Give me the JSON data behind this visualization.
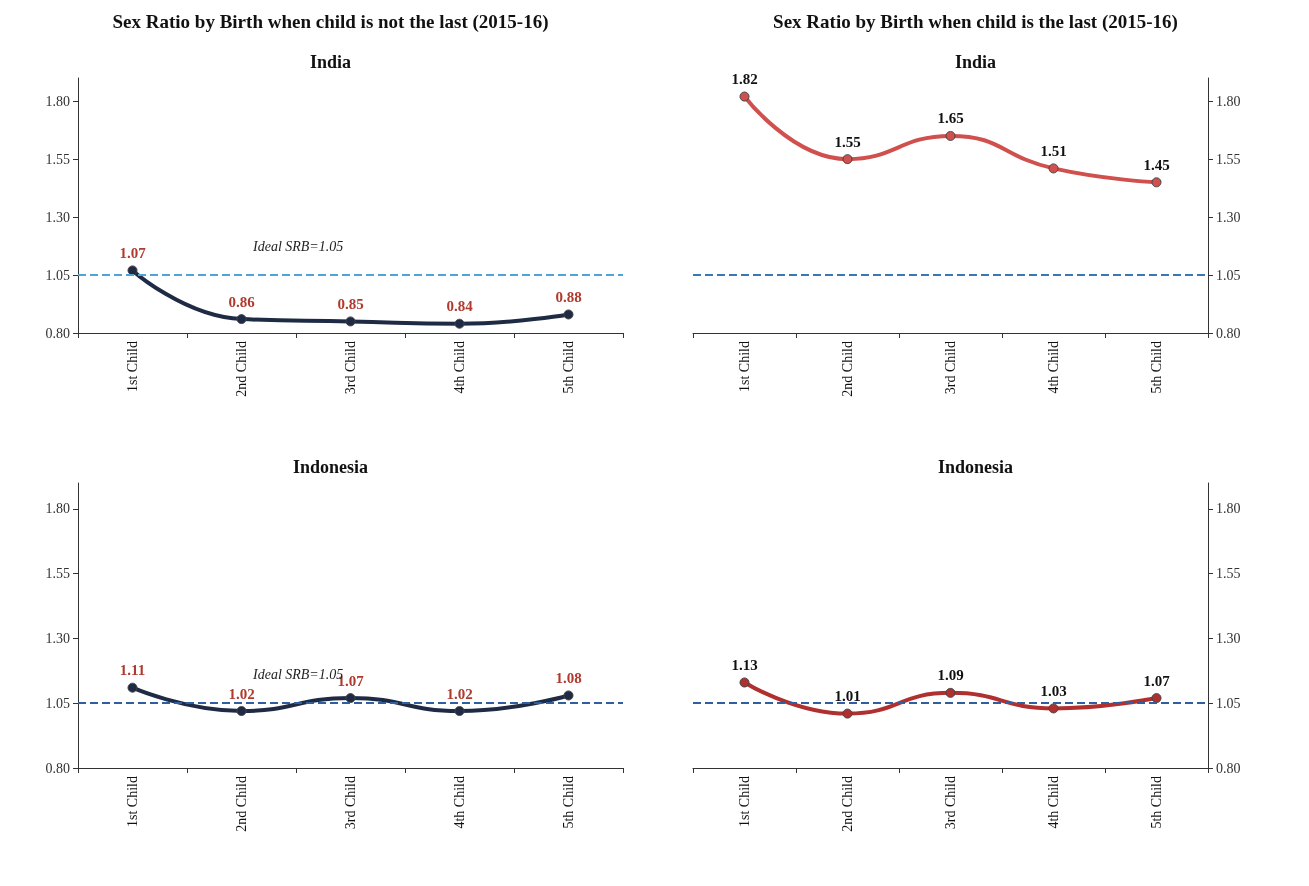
{
  "chart_data": [
    {
      "type": "line",
      "title": "India",
      "annotations": [
        "Sex Ratio by Birth when child is not the last (2015-16)"
      ],
      "categories": [
        "1st Child",
        "2nd Child",
        "3rd Child",
        "4th Child",
        "5th Child"
      ],
      "series": [
        {
          "color": "#1f2a44",
          "values": [
            1.07,
            0.86,
            0.85,
            0.84,
            0.88
          ]
        }
      ],
      "ylim": [
        0.8,
        1.9
      ],
      "yticks": [
        {
          "value": 0.8,
          "label": "0.80"
        },
        {
          "value": 1.05,
          "label": "1.05"
        },
        {
          "value": 1.3,
          "label": "1.30"
        },
        {
          "value": 1.55,
          "label": "1.55"
        },
        {
          "value": 1.8,
          "label": "1.80"
        }
      ],
      "ref_lines": [
        {
          "axis": "y",
          "value": 1.05,
          "label": "Ideal SRB=1.05",
          "color": "#4fa3d9",
          "line_style": "dashed"
        }
      ],
      "data_labels": true,
      "marker": "circle",
      "line_style": "solid",
      "grid": false
    },
    {
      "type": "line",
      "title": "India",
      "annotations": [
        "Sex Ratio by Birth when child is the last (2015-16)"
      ],
      "categories": [
        "1st Child",
        "2nd Child",
        "3rd Child",
        "4th Child",
        "5th Child"
      ],
      "series": [
        {
          "color": "#d0504d",
          "values": [
            1.82,
            1.55,
            1.65,
            1.51,
            1.45
          ],
          "axis": "y2"
        }
      ],
      "y2lim": [
        0.8,
        1.9
      ],
      "y2ticks": [
        {
          "value": 0.8,
          "label": "0.80"
        },
        {
          "value": 1.05,
          "label": "1.05"
        },
        {
          "value": 1.3,
          "label": "1.30"
        },
        {
          "value": 1.55,
          "label": "1.55"
        },
        {
          "value": 1.8,
          "label": "1.80"
        }
      ],
      "ref_lines": [
        {
          "axis": "y2",
          "value": 1.05,
          "color": "#3a78b5",
          "line_style": "dashed"
        }
      ],
      "data_labels": true,
      "marker": "circle",
      "line_style": "solid",
      "grid": false
    },
    {
      "type": "line",
      "title": "Indonesia",
      "categories": [
        "1st Child",
        "2nd Child",
        "3rd Child",
        "4th Child",
        "5th Child"
      ],
      "series": [
        {
          "color": "#1f2a44",
          "values": [
            1.11,
            1.02,
            1.07,
            1.02,
            1.08
          ]
        }
      ],
      "ylim": [
        0.8,
        1.9
      ],
      "yticks": [
        {
          "value": 0.8,
          "label": "0.80"
        },
        {
          "value": 1.05,
          "label": "1.05"
        },
        {
          "value": 1.3,
          "label": "1.30"
        },
        {
          "value": 1.55,
          "label": "1.55"
        },
        {
          "value": 1.8,
          "label": "1.80"
        }
      ],
      "ref_lines": [
        {
          "axis": "y",
          "value": 1.05,
          "label": "Ideal SRB=1.05",
          "color": "#2f5f9e",
          "line_style": "dashed"
        }
      ],
      "data_labels": true,
      "marker": "circle",
      "line_style": "solid",
      "grid": false
    },
    {
      "type": "line",
      "title": "Indonesia",
      "categories": [
        "1st Child",
        "2nd Child",
        "3rd Child",
        "4th Child",
        "5th Child"
      ],
      "series": [
        {
          "color": "#b03030",
          "values": [
            1.13,
            1.01,
            1.09,
            1.03,
            1.07
          ],
          "axis": "y2"
        }
      ],
      "y2lim": [
        0.8,
        1.9
      ],
      "y2ticks": [
        {
          "value": 0.8,
          "label": "0.80"
        },
        {
          "value": 1.05,
          "label": "1.05"
        },
        {
          "value": 1.3,
          "label": "1.30"
        },
        {
          "value": 1.55,
          "label": "1.55"
        },
        {
          "value": 1.8,
          "label": "1.80"
        }
      ],
      "ref_lines": [
        {
          "axis": "y2",
          "value": 1.05,
          "color": "#2f5f9e",
          "line_style": "dashed"
        }
      ],
      "data_labels": true,
      "marker": "circle",
      "line_style": "solid",
      "grid": false
    }
  ]
}
